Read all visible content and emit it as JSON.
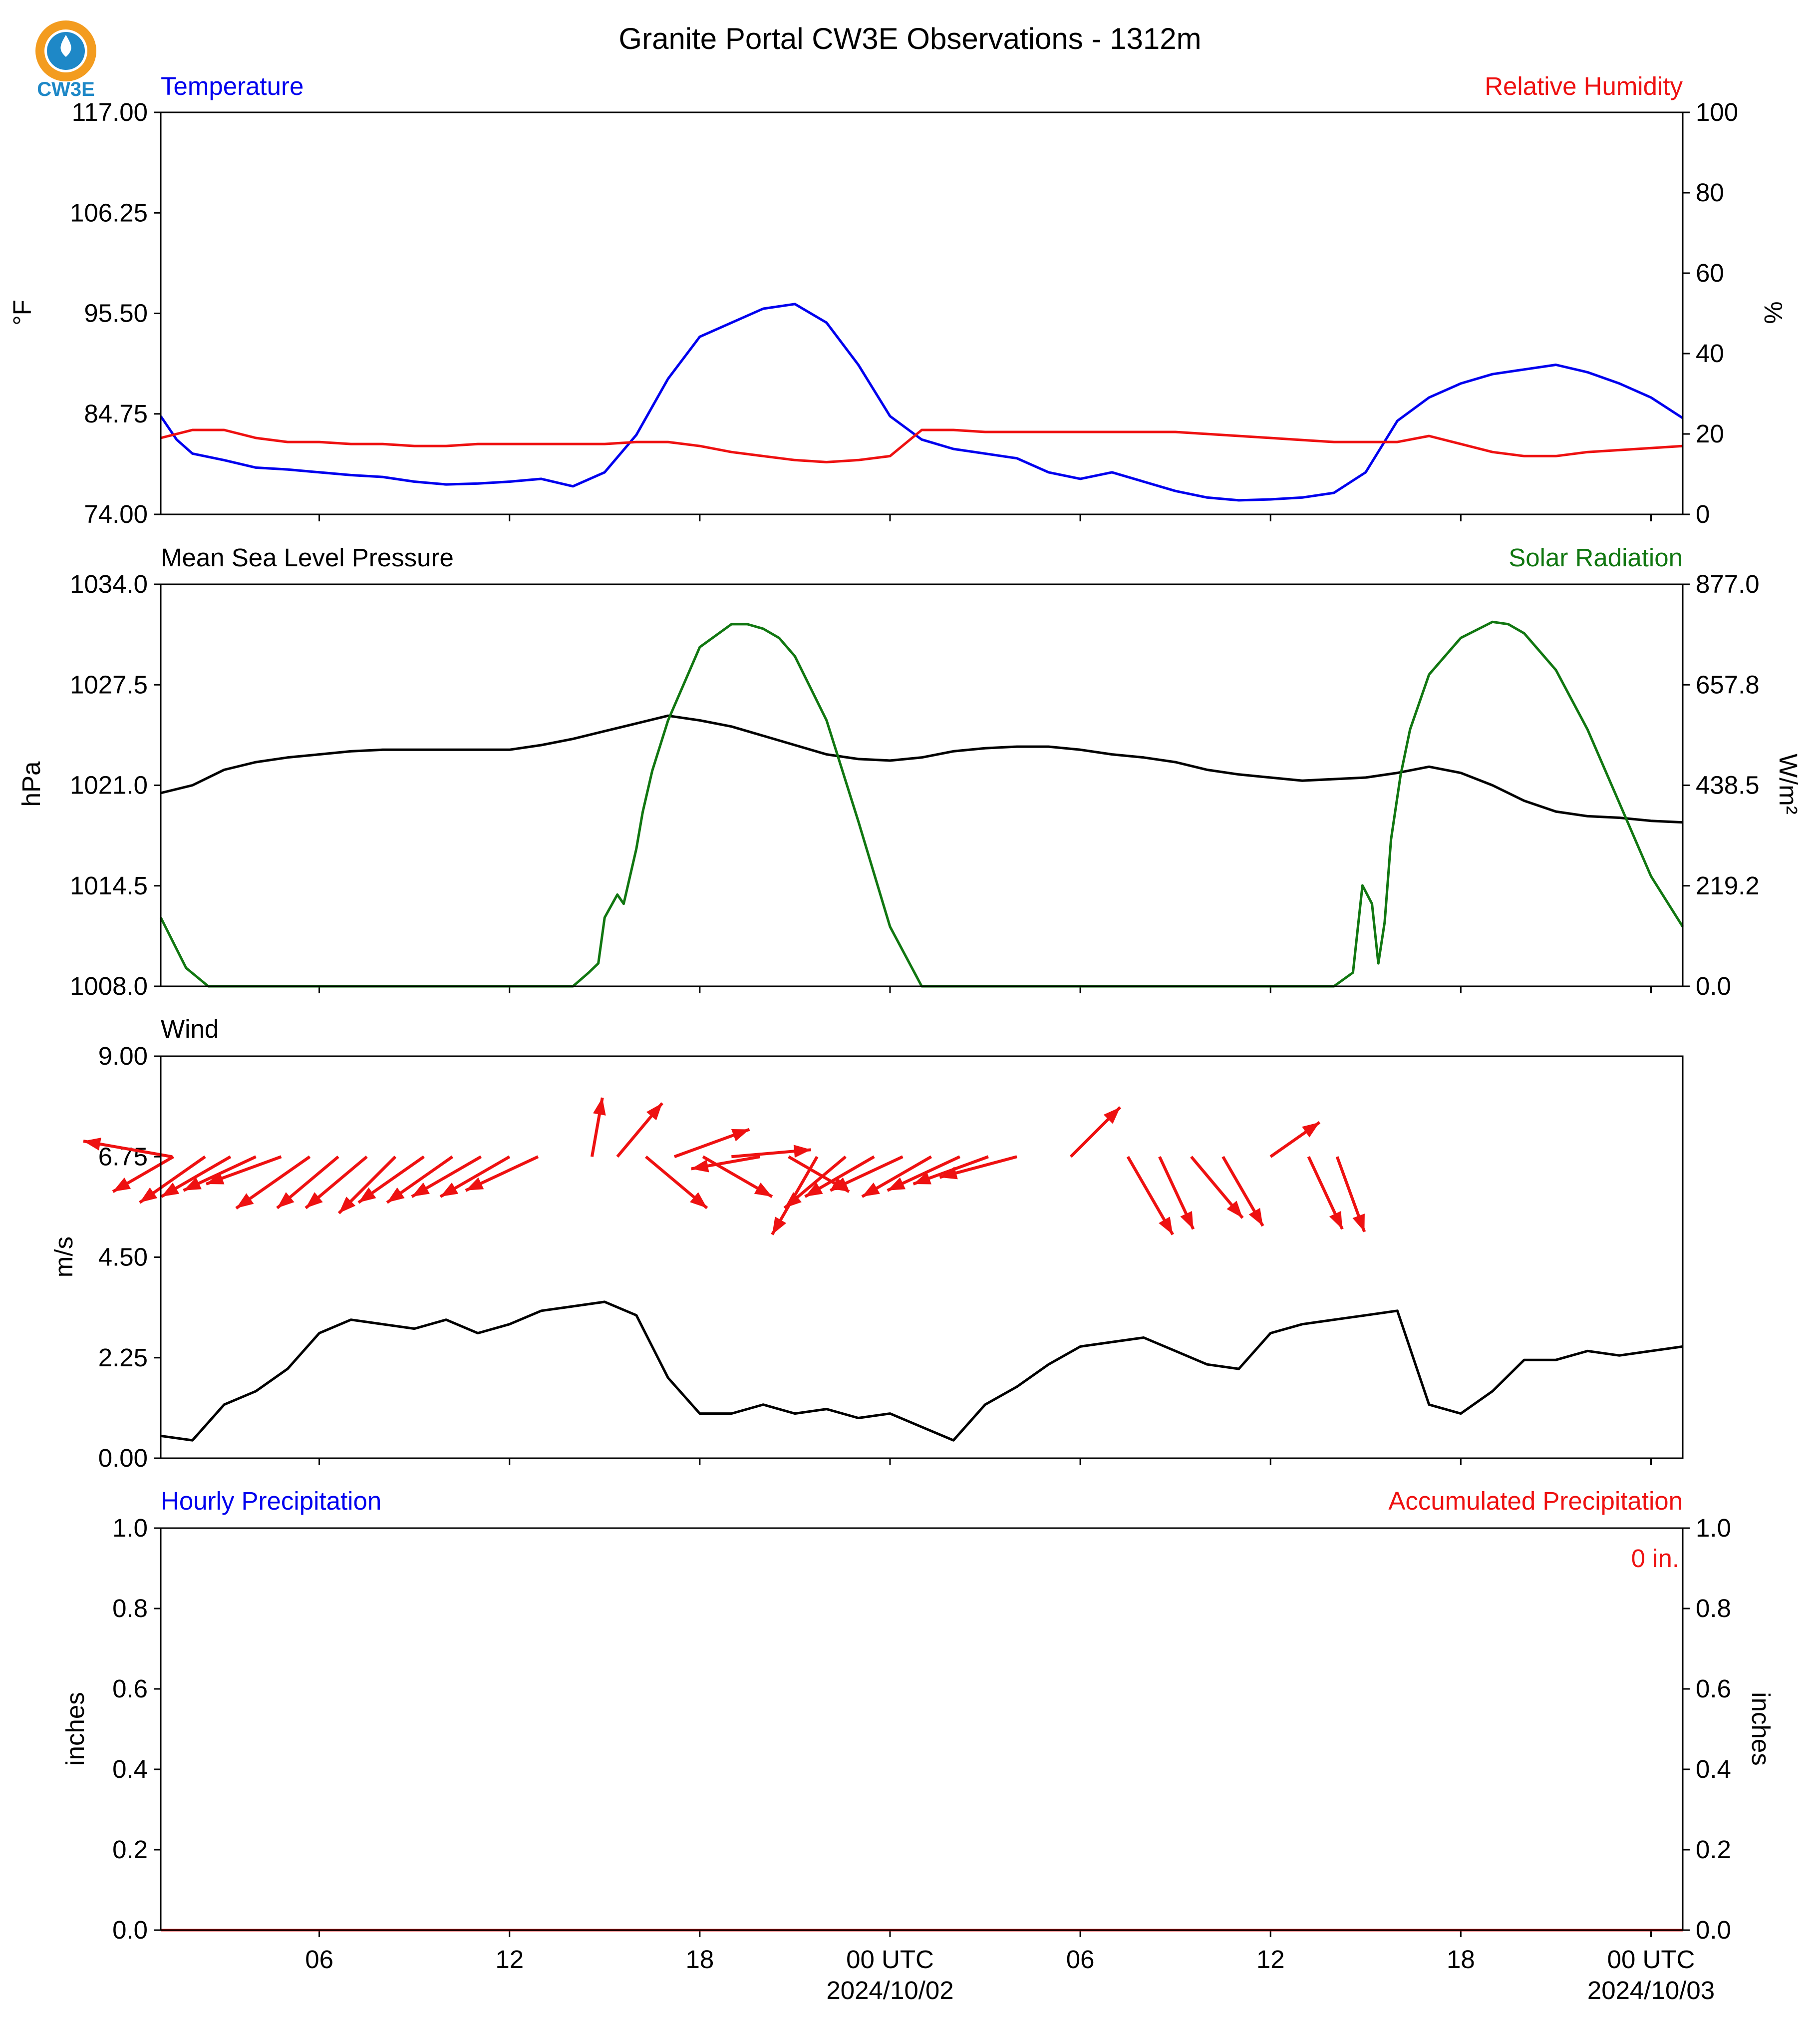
{
  "title": "Granite Portal CW3E Observations - 1312m",
  "logo": {
    "text": "CW3E",
    "ring_color": "#f39c1f",
    "globe_color": "#1e88c7"
  },
  "colors": {
    "temperature": "#0000ee",
    "humidity": "#ee1111",
    "pressure": "#000000",
    "solar": "#117711",
    "wind": "#000000",
    "arrows": "#ee1111",
    "precip_hourly": "#0000ee",
    "precip_accum": "#ee1111"
  },
  "time_axis": {
    "range_hours": [
      0,
      48
    ],
    "ticks": [
      {
        "hour": 5,
        "label": "06",
        "sub": ""
      },
      {
        "hour": 11,
        "label": "12",
        "sub": ""
      },
      {
        "hour": 17,
        "label": "18",
        "sub": ""
      },
      {
        "hour": 23,
        "label": "00 UTC",
        "sub": "2024/10/02"
      },
      {
        "hour": 29,
        "label": "06",
        "sub": ""
      },
      {
        "hour": 35,
        "label": "12",
        "sub": ""
      },
      {
        "hour": 41,
        "label": "18",
        "sub": ""
      },
      {
        "hour": 47,
        "label": "00 UTC",
        "sub": "2024/10/03"
      }
    ]
  },
  "chart_data": [
    {
      "type": "line",
      "left_title": "Temperature",
      "right_title": "Relative Humidity",
      "ylabel_left": "°F",
      "ylabel_right": "%",
      "ylim_left": [
        74,
        117
      ],
      "ylim_right": [
        0,
        100
      ],
      "yticks_left": [
        "74.00",
        "84.75",
        "95.50",
        "106.25",
        "117.00"
      ],
      "yticks_right": [
        "0",
        "20",
        "40",
        "60",
        "80",
        "100"
      ],
      "series": [
        {
          "name": "Temperature",
          "axis": "left",
          "color": "#0000ee",
          "x": [
            0,
            0.5,
            1,
            2,
            3,
            4,
            5,
            6,
            7,
            8,
            9,
            10,
            11,
            12,
            13,
            14,
            15,
            16,
            17,
            18,
            19,
            20,
            21,
            22,
            23,
            24,
            25,
            26,
            27,
            28,
            29,
            30,
            31,
            32,
            33,
            34,
            35,
            36,
            37,
            38,
            39,
            40,
            41,
            42,
            43,
            44,
            45,
            46,
            47,
            48
          ],
          "values": [
            84.5,
            82.0,
            80.5,
            79.8,
            79.0,
            78.8,
            78.5,
            78.2,
            78.0,
            77.5,
            77.2,
            77.3,
            77.5,
            77.8,
            77.0,
            78.5,
            82.5,
            88.5,
            93.0,
            94.5,
            96.0,
            96.5,
            94.5,
            90.0,
            84.5,
            82.0,
            81.0,
            80.5,
            80.0,
            78.5,
            77.8,
            78.5,
            77.5,
            76.5,
            75.8,
            75.5,
            75.6,
            75.8,
            76.3,
            78.5,
            84.0,
            86.5,
            88.0,
            89.0,
            89.5,
            90.0,
            89.2,
            88.0,
            86.5,
            84.3
          ]
        },
        {
          "name": "Relative Humidity",
          "axis": "right",
          "color": "#ee1111",
          "x": [
            0,
            1,
            2,
            3,
            4,
            5,
            6,
            7,
            8,
            9,
            10,
            11,
            12,
            13,
            14,
            15,
            16,
            17,
            18,
            19,
            20,
            21,
            22,
            23,
            24,
            25,
            26,
            27,
            28,
            29,
            30,
            31,
            32,
            33,
            34,
            35,
            36,
            37,
            38,
            39,
            40,
            41,
            42,
            43,
            44,
            45,
            46,
            47,
            48
          ],
          "values": [
            19,
            21,
            21,
            19,
            18,
            18,
            17.5,
            17.5,
            17,
            17,
            17.5,
            17.5,
            17.5,
            17.5,
            17.5,
            18,
            18,
            17,
            15.5,
            14.5,
            13.5,
            13,
            13.5,
            14.5,
            21,
            21,
            20.5,
            20.5,
            20.5,
            20.5,
            20.5,
            20.5,
            20.5,
            20,
            19.5,
            19,
            18.5,
            18,
            18,
            18,
            19.5,
            17.5,
            15.5,
            14.5,
            14.5,
            15.5,
            16,
            16.5,
            17
          ]
        }
      ]
    },
    {
      "type": "line",
      "left_title": "Mean Sea Level Pressure",
      "right_title": "Solar Radiation",
      "ylabel_left": "hPa",
      "ylabel_right": "W/m²",
      "ylim_left": [
        1008,
        1034
      ],
      "ylim_right": [
        0,
        877
      ],
      "yticks_left": [
        "1008.0",
        "1014.5",
        "1021.0",
        "1027.5",
        "1034.0"
      ],
      "yticks_right": [
        "0.0",
        "219.2",
        "438.5",
        "657.8",
        "877.0"
      ],
      "series": [
        {
          "name": "Mean Sea Level Pressure",
          "axis": "left",
          "color": "#000000",
          "x": [
            0,
            1,
            2,
            3,
            4,
            5,
            6,
            7,
            8,
            9,
            10,
            11,
            12,
            13,
            14,
            15,
            16,
            17,
            18,
            19,
            20,
            21,
            22,
            23,
            24,
            25,
            26,
            27,
            28,
            29,
            30,
            31,
            32,
            33,
            34,
            35,
            36,
            37,
            38,
            39,
            40,
            41,
            42,
            43,
            44,
            45,
            46,
            47,
            48
          ],
          "values": [
            1020.5,
            1021.0,
            1022.0,
            1022.5,
            1022.8,
            1023.0,
            1023.2,
            1023.3,
            1023.3,
            1023.3,
            1023.3,
            1023.3,
            1023.6,
            1024.0,
            1024.5,
            1025.0,
            1025.5,
            1025.2,
            1024.8,
            1024.2,
            1023.6,
            1023.0,
            1022.7,
            1022.6,
            1022.8,
            1023.2,
            1023.4,
            1023.5,
            1023.5,
            1023.3,
            1023.0,
            1022.8,
            1022.5,
            1022.0,
            1021.7,
            1021.5,
            1021.3,
            1021.4,
            1021.5,
            1021.8,
            1022.2,
            1021.8,
            1021.0,
            1020.0,
            1019.3,
            1019.0,
            1018.9,
            1018.7,
            1018.6
          ]
        },
        {
          "name": "Solar Radiation",
          "axis": "right",
          "color": "#117711",
          "x": [
            0,
            0.8,
            1.5,
            5,
            10,
            13,
            13.5,
            13.8,
            14,
            14.4,
            14.6,
            14.8,
            15,
            15.2,
            15.5,
            16,
            17,
            18,
            18.5,
            19,
            19.5,
            20,
            21,
            22,
            23,
            24,
            24.5,
            30,
            37,
            37.6,
            37.9,
            38.2,
            38.4,
            38.6,
            38.8,
            39.1,
            39.4,
            40,
            41,
            42,
            42.5,
            43,
            44,
            45,
            46,
            47,
            48
          ],
          "values": [
            150,
            40,
            0,
            0,
            0,
            0,
            30,
            50,
            150,
            200,
            180,
            240,
            300,
            380,
            470,
            580,
            740,
            790,
            790,
            780,
            760,
            720,
            580,
            360,
            130,
            0,
            0,
            0,
            0,
            30,
            220,
            180,
            50,
            140,
            320,
            460,
            560,
            680,
            760,
            795,
            790,
            770,
            690,
            560,
            400,
            240,
            130
          ]
        }
      ]
    },
    {
      "type": "line",
      "left_title": "Wind",
      "ylabel_left": "m/s",
      "ylim_left": [
        0,
        9
      ],
      "yticks_left": [
        "0.00",
        "2.25",
        "4.50",
        "6.75",
        "9.00"
      ],
      "series": [
        {
          "name": "Wind",
          "axis": "left",
          "color": "#000000",
          "x": [
            0,
            1,
            2,
            3,
            4,
            5,
            6,
            7,
            8,
            9,
            10,
            11,
            12,
            13,
            14,
            15,
            16,
            17,
            18,
            19,
            20,
            21,
            22,
            23,
            24,
            25,
            26,
            27,
            28,
            29,
            30,
            31,
            32,
            33,
            34,
            35,
            36,
            37,
            38,
            39,
            40,
            41,
            42,
            43,
            44,
            45,
            46,
            47,
            48
          ],
          "values": [
            0.5,
            0.4,
            1.2,
            1.5,
            2.0,
            2.8,
            3.1,
            3.0,
            2.9,
            3.1,
            2.8,
            3.0,
            3.3,
            3.4,
            3.5,
            3.2,
            1.8,
            1.0,
            1.0,
            1.2,
            1.0,
            1.1,
            0.9,
            1.0,
            0.7,
            0.4,
            1.2,
            1.6,
            2.1,
            2.5,
            2.6,
            2.7,
            2.4,
            2.1,
            2.0,
            2.8,
            3.0,
            3.1,
            3.2,
            3.3,
            1.2,
            1.0,
            1.5,
            2.2,
            2.2,
            2.4,
            2.3,
            2.4,
            2.5
          ]
        }
      ],
      "wind_arrows": [
        {
          "x": 0.35,
          "dir_from": 100,
          "len": 0.9
        },
        {
          "x": 0.4,
          "dir_from": 60,
          "len": 0.7
        },
        {
          "x": 1.4,
          "dir_from": 55,
          "len": 0.8
        },
        {
          "x": 2.2,
          "dir_from": 60,
          "len": 0.8
        },
        {
          "x": 3.0,
          "dir_from": 65,
          "len": 0.8
        },
        {
          "x": 3.8,
          "dir_from": 70,
          "len": 0.8
        },
        {
          "x": 4.7,
          "dir_from": 55,
          "len": 0.9
        },
        {
          "x": 5.6,
          "dir_from": 50,
          "len": 0.8
        },
        {
          "x": 6.5,
          "dir_from": 50,
          "len": 0.8
        },
        {
          "x": 7.4,
          "dir_from": 45,
          "len": 0.8
        },
        {
          "x": 8.3,
          "dir_from": 55,
          "len": 0.8
        },
        {
          "x": 9.2,
          "dir_from": 55,
          "len": 0.8
        },
        {
          "x": 10.1,
          "dir_from": 60,
          "len": 0.8
        },
        {
          "x": 11.0,
          "dir_from": 60,
          "len": 0.8
        },
        {
          "x": 11.9,
          "dir_from": 65,
          "len": 0.8
        },
        {
          "x": 13.6,
          "dir_from": 190,
          "len": 0.6
        },
        {
          "x": 14.4,
          "dir_from": 220,
          "len": 0.7
        },
        {
          "x": 15.3,
          "dir_from": 310,
          "len": 0.8
        },
        {
          "x": 16.2,
          "dir_from": 250,
          "len": 0.8
        },
        {
          "x": 17.1,
          "dir_from": 300,
          "len": 0.8
        },
        {
          "x": 18.0,
          "dir_from": 265,
          "len": 0.8
        },
        {
          "x": 18.9,
          "dir_from": 80,
          "len": 0.7
        },
        {
          "x": 19.8,
          "dir_from": 300,
          "len": 0.7
        },
        {
          "x": 20.7,
          "dir_from": 30,
          "len": 0.9
        },
        {
          "x": 21.6,
          "dir_from": 50,
          "len": 0.8
        },
        {
          "x": 22.5,
          "dir_from": 60,
          "len": 0.8
        },
        {
          "x": 23.4,
          "dir_from": 65,
          "len": 0.8
        },
        {
          "x": 24.3,
          "dir_from": 60,
          "len": 0.8
        },
        {
          "x": 25.2,
          "dir_from": 65,
          "len": 0.8
        },
        {
          "x": 26.1,
          "dir_from": 70,
          "len": 0.8
        },
        {
          "x": 27.0,
          "dir_from": 75,
          "len": 0.8
        },
        {
          "x": 28.7,
          "dir_from": 225,
          "len": 0.7
        },
        {
          "x": 30.5,
          "dir_from": 330,
          "len": 0.9
        },
        {
          "x": 31.5,
          "dir_from": 335,
          "len": 0.8
        },
        {
          "x": 32.5,
          "dir_from": 320,
          "len": 0.8
        },
        {
          "x": 33.5,
          "dir_from": 330,
          "len": 0.8
        },
        {
          "x": 35.0,
          "dir_from": 235,
          "len": 0.6
        },
        {
          "x": 36.2,
          "dir_from": 335,
          "len": 0.8
        },
        {
          "x": 37.1,
          "dir_from": 340,
          "len": 0.8
        }
      ]
    },
    {
      "type": "bar",
      "left_title": "Hourly Precipitation",
      "right_title": "Accumulated Precipitation",
      "ylabel_left": "inches",
      "ylabel_right": "inches",
      "ylim_left": [
        0,
        1
      ],
      "ylim_right": [
        0,
        1
      ],
      "yticks_left": [
        "0.0",
        "0.2",
        "0.4",
        "0.6",
        "0.8",
        "1.0"
      ],
      "yticks_right": [
        "0.0",
        "0.2",
        "0.4",
        "0.6",
        "0.8",
        "1.0"
      ],
      "annotation": "0 in.",
      "series": [
        {
          "name": "Hourly Precipitation",
          "axis": "left",
          "color": "#0000ee",
          "values": []
        },
        {
          "name": "Accumulated Precipitation",
          "axis": "right",
          "color": "#ee1111",
          "values": [
            0,
            0
          ]
        }
      ]
    }
  ]
}
